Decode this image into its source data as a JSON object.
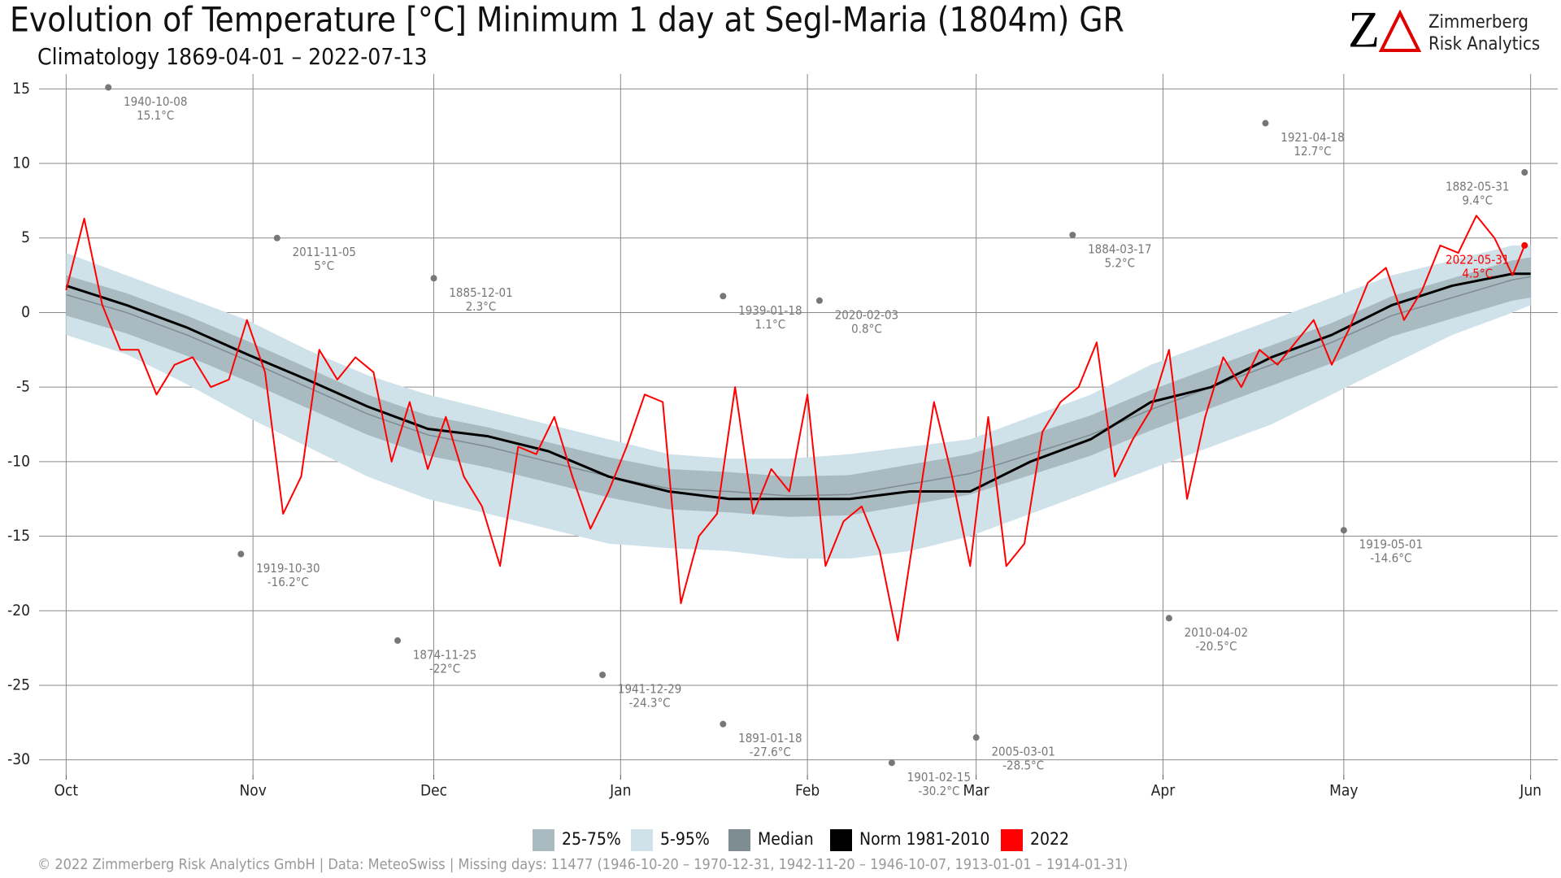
{
  "chart_data": {
    "type": "line",
    "title": "Evolution of Temperature [°C] Minimum 1 day at Segl-Maria (1804m) GR",
    "subtitle": "Climatology 1869-04-01 – 2022-07-13",
    "logo": {
      "mark": "Z",
      "line1": "Zimmerberg",
      "line2": "Risk Analytics"
    },
    "footer": "©  2022 Zimmerberg Risk Analytics GmbH | Data: MeteoSwiss | Missing days: 11477 (1946-10-20 – 1970-12-31, 1942-11-20 – 1946-10-07, 1913-01-01 – 1914-01-31)",
    "xlim": [
      -4.5,
      247.5
    ],
    "xticks": [
      {
        "value": 0,
        "label": "Oct"
      },
      {
        "value": 31,
        "label": "Nov"
      },
      {
        "value": 61,
        "label": "Dec"
      },
      {
        "value": 92,
        "label": "Jan"
      },
      {
        "value": 123,
        "label": "Feb"
      },
      {
        "value": 151,
        "label": "Mar"
      },
      {
        "value": 182,
        "label": "Apr"
      },
      {
        "value": 212,
        "label": "May"
      },
      {
        "value": 243,
        "label": "Jun"
      }
    ],
    "ylim": [
      -31,
      16
    ],
    "yticks": [
      15,
      10,
      5,
      0,
      -5,
      -10,
      -15,
      -20,
      -25,
      -30
    ],
    "grid": true,
    "series": [
      {
        "name": "25-75%",
        "kind": "band",
        "color": "#a9bac0",
        "x": [
          0,
          10,
          20,
          30,
          40,
          50,
          60,
          70,
          80,
          90,
          100,
          110,
          120,
          130,
          140,
          150,
          160,
          170,
          180,
          190,
          200,
          210,
          220,
          230,
          240,
          243
        ],
        "lower": [
          -0.2,
          -1.4,
          -2.9,
          -4.6,
          -6.4,
          -8.2,
          -9.6,
          -10.4,
          -11.4,
          -12.4,
          -13.2,
          -13.4,
          -13.7,
          -13.6,
          -12.9,
          -12.2,
          -10.9,
          -9.6,
          -7.9,
          -6.4,
          -4.9,
          -3.4,
          -1.6,
          -0.4,
          0.8,
          1.0
        ],
        "upper": [
          2.5,
          1.3,
          -0.2,
          -1.9,
          -3.7,
          -5.5,
          -6.9,
          -7.7,
          -8.7,
          -9.7,
          -10.5,
          -10.7,
          -11,
          -10.9,
          -10.2,
          -9.5,
          -8.2,
          -6.9,
          -5.2,
          -3.7,
          -2.2,
          -0.7,
          1.1,
          2.3,
          3.5,
          3.7
        ]
      },
      {
        "name": "5-95%",
        "kind": "band",
        "color": "#cfe2e9",
        "x": [
          0,
          10,
          20,
          30,
          40,
          50,
          60,
          70,
          80,
          90,
          100,
          110,
          120,
          130,
          140,
          150,
          160,
          170,
          180,
          190,
          200,
          210,
          220,
          230,
          240,
          243
        ],
        "lower": [
          -1.5,
          -2.8,
          -4.8,
          -7,
          -9,
          -11,
          -12.5,
          -13.5,
          -14.5,
          -15.5,
          -15.8,
          -16,
          -16.5,
          -16.5,
          -16,
          -15,
          -13.5,
          -12,
          -10.5,
          -9,
          -7.5,
          -5.5,
          -3.5,
          -1.5,
          0,
          0.5
        ],
        "upper": [
          4,
          2.5,
          1,
          -0.5,
          -2.5,
          -4.2,
          -5.5,
          -6.5,
          -7.5,
          -8.5,
          -9.5,
          -9.8,
          -9.8,
          -9.5,
          -9,
          -8.5,
          -7,
          -5.5,
          -3.5,
          -2,
          -0.5,
          1,
          2.5,
          3.5,
          4.5,
          4.5
        ]
      },
      {
        "name": "Median",
        "kind": "line",
        "color": "#7e8d92",
        "width": 1.5,
        "x": [
          0,
          10,
          20,
          30,
          40,
          50,
          60,
          70,
          80,
          90,
          100,
          110,
          120,
          130,
          140,
          150,
          160,
          170,
          180,
          190,
          200,
          210,
          220,
          230,
          240,
          243
        ],
        "values": [
          1.2,
          0,
          -1.5,
          -3.2,
          -5,
          -6.8,
          -8.2,
          -9,
          -10,
          -11,
          -11.8,
          -12,
          -12.3,
          -12.2,
          -11.5,
          -10.8,
          -9.5,
          -8.2,
          -6.5,
          -5,
          -3.5,
          -2,
          -0.2,
          1,
          2.2,
          2.4
        ]
      },
      {
        "name": "Norm 1981-2010",
        "kind": "line",
        "color": "#000000",
        "width": 3,
        "x": [
          0,
          10,
          20,
          30,
          40,
          50,
          60,
          70,
          80,
          90,
          100,
          110,
          120,
          130,
          140,
          150,
          160,
          170,
          180,
          190,
          200,
          210,
          220,
          230,
          240,
          243
        ],
        "values": [
          1.8,
          0.5,
          -1,
          -2.8,
          -4.5,
          -6.3,
          -7.8,
          -8.3,
          -9.3,
          -11,
          -12,
          -12.5,
          -12.5,
          -12.5,
          -12,
          -12,
          -10,
          -8.5,
          -6,
          -5,
          -3,
          -1.5,
          0.5,
          1.8,
          2.6,
          2.6
        ]
      },
      {
        "name": "2022",
        "kind": "line",
        "color": "#ff0000",
        "width": 2,
        "x": [
          0,
          3,
          6,
          9,
          12,
          15,
          18,
          21,
          24,
          27,
          30,
          33,
          36,
          39,
          42,
          45,
          48,
          51,
          54,
          57,
          60,
          63,
          66,
          69,
          72,
          75,
          78,
          81,
          84,
          87,
          90,
          93,
          96,
          99,
          102,
          105,
          108,
          111,
          114,
          117,
          120,
          123,
          126,
          129,
          132,
          135,
          138,
          141,
          144,
          147,
          150,
          153,
          156,
          159,
          162,
          165,
          168,
          171,
          174,
          177,
          180,
          183,
          186,
          189,
          192,
          195,
          198,
          201,
          204,
          207,
          210,
          213,
          216,
          219,
          222,
          225,
          228,
          231,
          234,
          237,
          240,
          242
        ],
        "values": [
          1.5,
          6.3,
          0.5,
          -2.5,
          -2.5,
          -5.5,
          -3.5,
          -3,
          -5,
          -4.5,
          -0.5,
          -4,
          -13.5,
          -11,
          -2.5,
          -4.5,
          -3,
          -4,
          -10,
          -6,
          -10.5,
          -7,
          -11,
          -13,
          -17,
          -9,
          -9.5,
          -7,
          -11,
          -14.5,
          -12,
          -9,
          -5.5,
          -6,
          -19.5,
          -15,
          -13.5,
          -5,
          -13.5,
          -10.5,
          -12,
          -5.5,
          -17,
          -14,
          -13,
          -16,
          -22,
          -14,
          -6,
          -11,
          -17,
          -7,
          -17,
          -15.5,
          -8,
          -6,
          -5,
          -2,
          -11,
          -8.5,
          -6.5,
          -2.5,
          -12.5,
          -7,
          -3,
          -5,
          -2.5,
          -3.5,
          -2,
          -0.5,
          -3.5,
          -1,
          2,
          3,
          -0.5,
          1.5,
          4.5,
          4,
          6.5,
          5,
          2.5,
          4.5
        ]
      }
    ],
    "annotations": [
      {
        "x": 7,
        "y": 15.1,
        "date": "1940-10-08",
        "label": "15.1°C",
        "color": "#777777"
      },
      {
        "x": 35,
        "y": 5,
        "date": "2011-11-05",
        "label": "5°C",
        "color": "#777777"
      },
      {
        "x": 29,
        "y": -16.2,
        "date": "1919-10-30",
        "label": "-16.2°C",
        "color": "#777777"
      },
      {
        "x": 61,
        "y": 2.3,
        "date": "1885-12-01",
        "label": "2.3°C",
        "color": "#777777"
      },
      {
        "x": 55,
        "y": -22,
        "date": "1874-11-25",
        "label": "-22°C",
        "color": "#777777"
      },
      {
        "x": 89,
        "y": -24.3,
        "date": "1941-12-29",
        "label": "-24.3°C",
        "color": "#777777"
      },
      {
        "x": 109,
        "y": 1.1,
        "date": "1939-01-18",
        "label": "1.1°C",
        "color": "#777777"
      },
      {
        "x": 109,
        "y": -27.6,
        "date": "1891-01-18",
        "label": "-27.6°C",
        "color": "#777777"
      },
      {
        "x": 125,
        "y": 0.8,
        "date": "2020-02-03",
        "label": "0.8°C",
        "color": "#777777"
      },
      {
        "x": 137,
        "y": -30.2,
        "date": "1901-02-15",
        "label": "-30.2°C",
        "color": "#777777"
      },
      {
        "x": 151,
        "y": -28.5,
        "date": "2005-03-01",
        "label": "-28.5°C",
        "color": "#777777"
      },
      {
        "x": 167,
        "y": 5.2,
        "date": "1884-03-17",
        "label": "5.2°C",
        "color": "#777777"
      },
      {
        "x": 183,
        "y": -20.5,
        "date": "2010-04-02",
        "label": "-20.5°C",
        "color": "#777777"
      },
      {
        "x": 199,
        "y": 12.7,
        "date": "1921-04-18",
        "label": "12.7°C",
        "color": "#777777"
      },
      {
        "x": 212,
        "y": -14.6,
        "date": "1919-05-01",
        "label": "-14.6°C",
        "color": "#777777"
      },
      {
        "x": 242,
        "y": 9.4,
        "date": "1882-05-31",
        "label": "9.4°C",
        "color": "#777777"
      },
      {
        "x": 242,
        "y": 4.5,
        "date": "2022-05-31",
        "label": "4.5°C",
        "color": "#ff0000"
      }
    ]
  }
}
